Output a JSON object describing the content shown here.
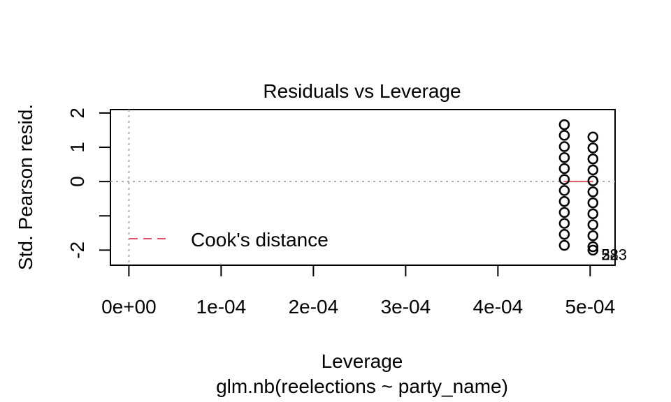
{
  "chart_data": {
    "type": "scatter",
    "title": "Residuals vs Leverage",
    "xlabel": "Leverage",
    "ylabel": "Std. Pearson resid.",
    "subtitle": "glm.nb(reelections ~ party_name)",
    "xlim": [
      -2e-05,
      0.000527
    ],
    "ylim": [
      -2.44,
      2.1
    ],
    "x_ticks": [
      0,
      0.0001,
      0.0002,
      0.0003,
      0.0004,
      0.0005
    ],
    "x_tick_labels": [
      "0e+00",
      "1e-04",
      "2e-04",
      "3e-04",
      "4e-04",
      "5e-04"
    ],
    "y_ticks": [
      -2,
      -1,
      0,
      1,
      2
    ],
    "y_tick_labels": [
      "-2",
      "",
      "0",
      "1",
      "2"
    ],
    "grid": false,
    "reference_lines": {
      "h": 0,
      "v": 0,
      "style": "dotted",
      "color": "#aaaaaa"
    },
    "series": [
      {
        "x": [
          0.000472,
          0.000472,
          0.000472,
          0.000472,
          0.000472,
          0.000472,
          0.000472,
          0.000472,
          0.000472,
          0.000472,
          0.000472,
          0.000472
        ],
        "y": [
          1.66,
          1.35,
          1.02,
          0.7,
          0.38,
          0.06,
          -0.26,
          -0.58,
          -0.9,
          -1.22,
          -1.54,
          -1.86
        ]
      },
      {
        "x": [
          0.000503,
          0.000503,
          0.000503,
          0.000503,
          0.000503,
          0.000503,
          0.000503,
          0.000503,
          0.000503,
          0.000503,
          0.000503,
          0.000503
        ],
        "y": [
          1.3,
          0.98,
          0.66,
          0.34,
          0.02,
          -0.3,
          -0.62,
          -0.94,
          -1.26,
          -1.58,
          -1.9,
          -2.0
        ]
      }
    ],
    "smooth_line": {
      "x": [
        0.000472,
        0.000503
      ],
      "y": [
        0.0,
        0.0
      ],
      "color": "#df536b"
    },
    "point_labels": [
      {
        "text": "323",
        "x": 0.000503,
        "y": -2.0
      },
      {
        "text": "52",
        "x": 0.000503,
        "y": -2.0
      },
      {
        "text": "28",
        "x": 0.000503,
        "y": -2.0
      }
    ],
    "legend": {
      "label": "Cook's distance",
      "position": "bottom-left",
      "line_color": "#df536b",
      "line_style": "dashed"
    }
  }
}
